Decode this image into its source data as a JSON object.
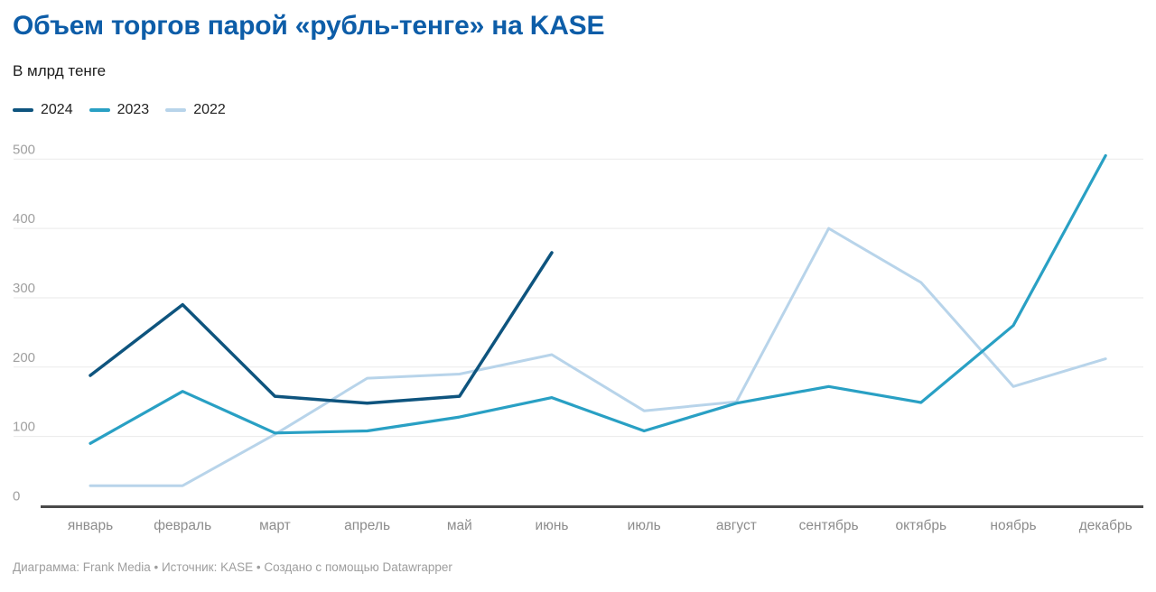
{
  "header": {
    "title": "Объем торгов парой «рубль-тенге» на KASE",
    "subtitle": "В млрд тенге"
  },
  "legend": {
    "items": [
      {
        "label": "2024",
        "color": "#0e547e"
      },
      {
        "label": "2023",
        "color": "#29a0c4"
      },
      {
        "label": "2022",
        "color": "#b8d4ea"
      }
    ]
  },
  "footer": {
    "text": "Диаграмма: Frank Media • Источник: KASE • Создано с помощью Datawrapper"
  },
  "colors": {
    "title": "#0d5da8",
    "gridline": "#eaeaea",
    "baseline": "#4a4a4a",
    "y_tick_label": "#a0a0a0",
    "x_tick_label": "#8c8c8c"
  },
  "chart_data": {
    "type": "line",
    "title": "Объем торгов парой «рубль-тенге» на KASE",
    "ylabel": "В млрд тенге",
    "xlabel": "",
    "categories": [
      "январь",
      "февраль",
      "март",
      "апрель",
      "май",
      "июнь",
      "июль",
      "август",
      "сентябрь",
      "октябрь",
      "ноябрь",
      "декабрь"
    ],
    "ylim": [
      0,
      500
    ],
    "yticks": [
      0,
      100,
      200,
      300,
      400,
      500
    ],
    "grid": "horizontal",
    "legend_position": "top-left",
    "series": [
      {
        "name": "2024",
        "color": "#0e547e",
        "values": [
          188,
          290,
          158,
          148,
          158,
          365
        ]
      },
      {
        "name": "2023",
        "color": "#29a0c4",
        "values": [
          90,
          165,
          105,
          108,
          128,
          156,
          108,
          148,
          172,
          149,
          260,
          505
        ]
      },
      {
        "name": "2022",
        "color": "#b8d4ea",
        "values": [
          29,
          29,
          103,
          184,
          190,
          218,
          137,
          150,
          400,
          322,
          172,
          212
        ]
      }
    ]
  }
}
